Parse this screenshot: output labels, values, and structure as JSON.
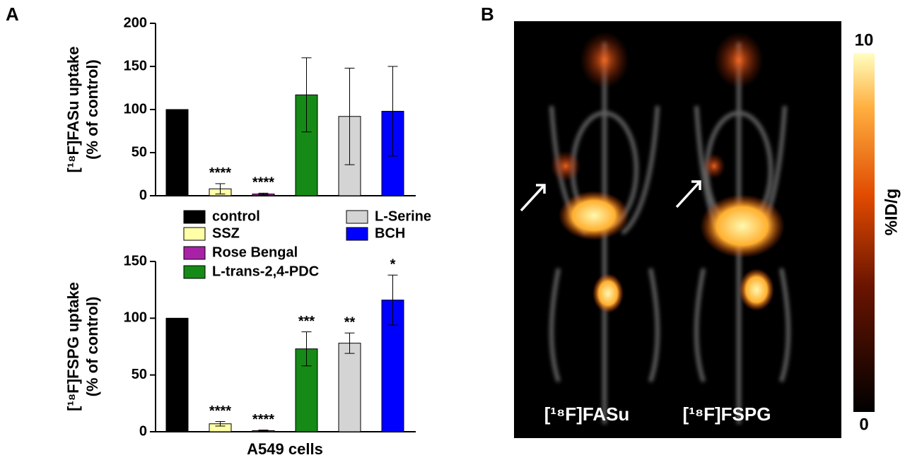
{
  "panel_labels": [
    "A",
    "B"
  ],
  "chart_data": [
    {
      "type": "bar",
      "ylabel": [
        "[¹⁸F]FASu uptake",
        "(% of control)"
      ],
      "categories": [
        "control",
        "SSZ",
        "Rose Bengal",
        "L-trans-2,4-PDC",
        "L-Serine",
        "BCH"
      ],
      "colors": [
        "#000000",
        "#ffffa8",
        "#a822a8",
        "#168a16",
        "#d4d4d4",
        "#0000ff"
      ],
      "values": [
        100,
        8,
        2,
        117,
        92,
        98
      ],
      "errors": [
        0,
        6,
        1,
        43,
        56,
        52
      ],
      "annotations": [
        null,
        "****",
        "****",
        null,
        null,
        null
      ],
      "ylim": [
        0,
        200
      ],
      "yticks": [
        0,
        50,
        100,
        150,
        200
      ]
    },
    {
      "type": "bar",
      "ylabel": [
        "[¹⁸F]FSPG uptake",
        "(% of control)"
      ],
      "xlabel": "A549 cells",
      "categories": [
        "control",
        "SSZ",
        "Rose Bengal",
        "L-trans-2,4-PDC",
        "L-Serine",
        "BCH"
      ],
      "colors": [
        "#000000",
        "#ffffa8",
        "#a822a8",
        "#168a16",
        "#d4d4d4",
        "#0000ff"
      ],
      "values": [
        100,
        7,
        1,
        73,
        78,
        116
      ],
      "errors": [
        0,
        2,
        0.5,
        15,
        9,
        22
      ],
      "annotations": [
        null,
        "****",
        "****",
        "***",
        "**",
        "*"
      ],
      "ylim": [
        0,
        150
      ],
      "yticks": [
        0,
        50,
        100,
        150
      ]
    }
  ],
  "image_panel": {
    "labels": [
      "[¹⁸F]FASu",
      "[¹⁸F]FSPG"
    ],
    "colorbar": {
      "max": 10,
      "min": 0,
      "label": "%ID/g"
    }
  }
}
